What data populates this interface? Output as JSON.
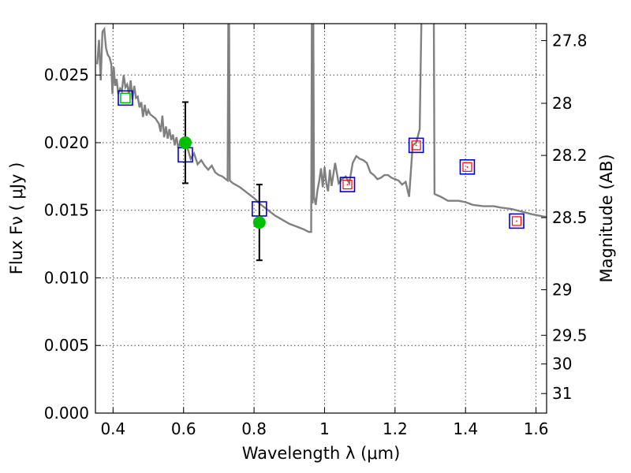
{
  "chart_data": {
    "type": "scatter",
    "title": "",
    "xlabel": "Wavelength  λ (μm)",
    "ylabel": "Flux  Fν  ( μJy )",
    "y2label": "Magnitude (AB)",
    "xlim": [
      0.35,
      1.63
    ],
    "ylim": [
      0.0,
      0.0288
    ],
    "grid": true,
    "legend": "none",
    "x_ticks": [
      {
        "value": 0.4,
        "label": "0.4"
      },
      {
        "value": 0.6,
        "label": "0.6"
      },
      {
        "value": 0.8,
        "label": "0.8"
      },
      {
        "value": 1.0,
        "label": "1"
      },
      {
        "value": 1.2,
        "label": "1.2"
      },
      {
        "value": 1.4,
        "label": "1.4"
      },
      {
        "value": 1.6,
        "label": "1.6"
      }
    ],
    "y_ticks": [
      {
        "value": 0.0,
        "label": "0.000"
      },
      {
        "value": 0.005,
        "label": "0.005"
      },
      {
        "value": 0.01,
        "label": "0.010"
      },
      {
        "value": 0.015,
        "label": "0.015"
      },
      {
        "value": 0.02,
        "label": "0.020"
      },
      {
        "value": 0.025,
        "label": "0.025"
      }
    ],
    "mag_ticks": [
      {
        "value": 27.8,
        "label": "27.8"
      },
      {
        "value": 28.0,
        "label": "28"
      },
      {
        "value": 28.2,
        "label": "28.2"
      },
      {
        "value": 28.5,
        "label": "28.5"
      },
      {
        "value": 29.0,
        "label": "29"
      },
      {
        "value": 29.5,
        "label": "29.5"
      },
      {
        "value": 30.0,
        "label": "30"
      },
      {
        "value": 31.0,
        "label": "31"
      }
    ],
    "colors": {
      "sed": "#808080",
      "observed": "#00c000",
      "model_box": "#0000dd",
      "upper_box": "#ff0000",
      "errorbar": "#000000"
    },
    "sed_curve": [
      [
        0.355,
        0.0258
      ],
      [
        0.36,
        0.0276
      ],
      [
        0.365,
        0.0246
      ],
      [
        0.37,
        0.0282
      ],
      [
        0.375,
        0.0284
      ],
      [
        0.38,
        0.027
      ],
      [
        0.385,
        0.0265
      ],
      [
        0.39,
        0.0263
      ],
      [
        0.395,
        0.0258
      ],
      [
        0.398,
        0.0236
      ],
      [
        0.402,
        0.0256
      ],
      [
        0.406,
        0.0242
      ],
      [
        0.41,
        0.0247
      ],
      [
        0.415,
        0.0236
      ],
      [
        0.42,
        0.024
      ],
      [
        0.425,
        0.0238
      ],
      [
        0.43,
        0.025
      ],
      [
        0.435,
        0.0241
      ],
      [
        0.44,
        0.0243
      ],
      [
        0.445,
        0.0236
      ],
      [
        0.45,
        0.0246
      ],
      [
        0.455,
        0.0232
      ],
      [
        0.46,
        0.0242
      ],
      [
        0.465,
        0.0233
      ],
      [
        0.47,
        0.0234
      ],
      [
        0.475,
        0.0226
      ],
      [
        0.48,
        0.023
      ],
      [
        0.485,
        0.0219
      ],
      [
        0.49,
        0.0228
      ],
      [
        0.495,
        0.022
      ],
      [
        0.5,
        0.0224
      ],
      [
        0.505,
        0.0221
      ],
      [
        0.51,
        0.022
      ],
      [
        0.515,
        0.0219
      ],
      [
        0.52,
        0.0218
      ],
      [
        0.525,
        0.0216
      ],
      [
        0.53,
        0.0214
      ],
      [
        0.535,
        0.0208
      ],
      [
        0.54,
        0.022
      ],
      [
        0.545,
        0.0204
      ],
      [
        0.55,
        0.0212
      ],
      [
        0.555,
        0.0203
      ],
      [
        0.56,
        0.021
      ],
      [
        0.565,
        0.0202
      ],
      [
        0.57,
        0.0206
      ],
      [
        0.575,
        0.0198
      ],
      [
        0.58,
        0.0204
      ],
      [
        0.585,
        0.0196
      ],
      [
        0.59,
        0.02
      ],
      [
        0.6,
        0.0196
      ],
      [
        0.61,
        0.0197
      ],
      [
        0.62,
        0.0188
      ],
      [
        0.63,
        0.0192
      ],
      [
        0.64,
        0.0184
      ],
      [
        0.65,
        0.0187
      ],
      [
        0.66,
        0.0183
      ],
      [
        0.67,
        0.018
      ],
      [
        0.68,
        0.0183
      ],
      [
        0.69,
        0.0178
      ],
      [
        0.7,
        0.0176
      ],
      [
        0.71,
        0.0175
      ],
      [
        0.72,
        0.0173
      ],
      [
        0.725,
        0.0172
      ],
      [
        0.727,
        0.0295
      ],
      [
        0.729,
        0.0295
      ],
      [
        0.731,
        0.0172
      ],
      [
        0.74,
        0.017
      ],
      [
        0.76,
        0.0167
      ],
      [
        0.78,
        0.0163
      ],
      [
        0.8,
        0.0159
      ],
      [
        0.82,
        0.0154
      ],
      [
        0.84,
        0.015
      ],
      [
        0.86,
        0.0146
      ],
      [
        0.88,
        0.0143
      ],
      [
        0.9,
        0.014
      ],
      [
        0.92,
        0.0138
      ],
      [
        0.94,
        0.0136
      ],
      [
        0.955,
        0.0134
      ],
      [
        0.962,
        0.0134
      ],
      [
        0.964,
        0.0295
      ],
      [
        0.966,
        0.0155
      ],
      [
        0.968,
        0.0295
      ],
      [
        0.97,
        0.016
      ],
      [
        0.975,
        0.0154
      ],
      [
        0.98,
        0.0165
      ],
      [
        0.985,
        0.0172
      ],
      [
        0.99,
        0.0181
      ],
      [
        0.995,
        0.0167
      ],
      [
        1.0,
        0.0182
      ],
      [
        1.005,
        0.017
      ],
      [
        1.01,
        0.0164
      ],
      [
        1.015,
        0.018
      ],
      [
        1.02,
        0.0168
      ],
      [
        1.03,
        0.0185
      ],
      [
        1.04,
        0.017
      ],
      [
        1.05,
        0.0173
      ],
      [
        1.06,
        0.0175
      ],
      [
        1.07,
        0.017
      ],
      [
        1.08,
        0.0185
      ],
      [
        1.09,
        0.019
      ],
      [
        1.1,
        0.0188
      ],
      [
        1.11,
        0.0187
      ],
      [
        1.12,
        0.0185
      ],
      [
        1.13,
        0.0178
      ],
      [
        1.14,
        0.0176
      ],
      [
        1.15,
        0.0173
      ],
      [
        1.16,
        0.0174
      ],
      [
        1.17,
        0.0176
      ],
      [
        1.18,
        0.0176
      ],
      [
        1.19,
        0.0174
      ],
      [
        1.2,
        0.0173
      ],
      [
        1.21,
        0.0172
      ],
      [
        1.22,
        0.0169
      ],
      [
        1.23,
        0.0171
      ],
      [
        1.24,
        0.016
      ],
      [
        1.25,
        0.0198
      ],
      [
        1.26,
        0.02
      ],
      [
        1.265,
        0.0205
      ],
      [
        1.27,
        0.021
      ],
      [
        1.275,
        0.0295
      ],
      [
        1.31,
        0.0295
      ],
      [
        1.312,
        0.0162
      ],
      [
        1.33,
        0.016
      ],
      [
        1.35,
        0.0157
      ],
      [
        1.38,
        0.0157
      ],
      [
        1.4,
        0.0156
      ],
      [
        1.42,
        0.0154
      ],
      [
        1.45,
        0.0153
      ],
      [
        1.48,
        0.0153
      ],
      [
        1.5,
        0.0152
      ],
      [
        1.53,
        0.0151
      ],
      [
        1.56,
        0.0149
      ],
      [
        1.59,
        0.0147
      ],
      [
        1.63,
        0.0145
      ]
    ],
    "observed_points": [
      {
        "x": 0.605,
        "y": 0.02,
        "yerr": 0.003
      },
      {
        "x": 0.815,
        "y": 0.0141,
        "yerr": 0.0028
      }
    ],
    "model_points": [
      {
        "x": 0.435,
        "y": 0.0233,
        "inner": "green"
      },
      {
        "x": 0.605,
        "y": 0.0191,
        "inner": "none"
      },
      {
        "x": 0.815,
        "y": 0.0151,
        "inner": "none"
      },
      {
        "x": 1.065,
        "y": 0.0169,
        "inner": "red"
      },
      {
        "x": 1.26,
        "y": 0.0198,
        "inner": "red"
      },
      {
        "x": 1.405,
        "y": 0.0182,
        "inner": "red"
      },
      {
        "x": 1.545,
        "y": 0.0142,
        "inner": "red"
      }
    ]
  }
}
